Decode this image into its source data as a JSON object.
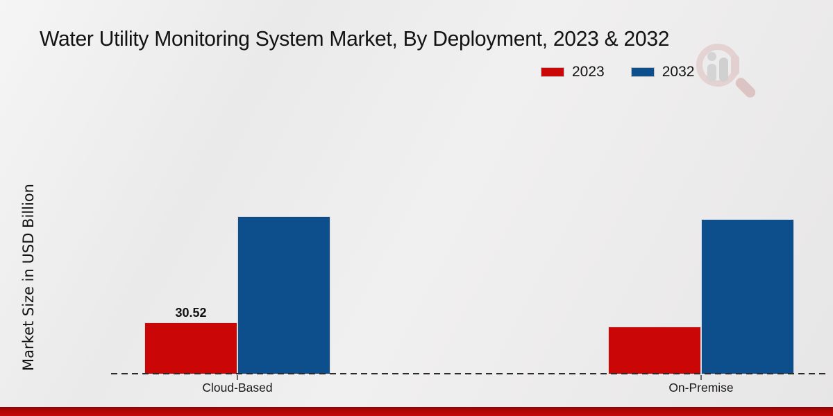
{
  "title": "Water Utility Monitoring System Market, By Deployment, 2023 & 2032",
  "y_axis_label": "Market Size in USD Billion",
  "footer_stripe_color": "#b30606",
  "chart_data": {
    "type": "bar",
    "title": "Water Utility Monitoring System Market, By Deployment, 2023 & 2032",
    "ylabel": "Market Size in USD Billion",
    "xlabel": "",
    "categories": [
      "Cloud-Based",
      "On-Premise"
    ],
    "series": [
      {
        "name": "2023",
        "color": "#cb0606",
        "values": [
          30.52,
          28.0
        ],
        "data_labels": [
          "30.52",
          null
        ]
      },
      {
        "name": "2032",
        "color": "#0d4e8c",
        "values": [
          93.6,
          92.0
        ],
        "data_labels": [
          null,
          null
        ]
      }
    ],
    "ylim": [
      0,
      95
    ],
    "grid": false,
    "y_ticks_visible": false,
    "legend_position": "top-right",
    "x_axis_style": "dashed"
  }
}
